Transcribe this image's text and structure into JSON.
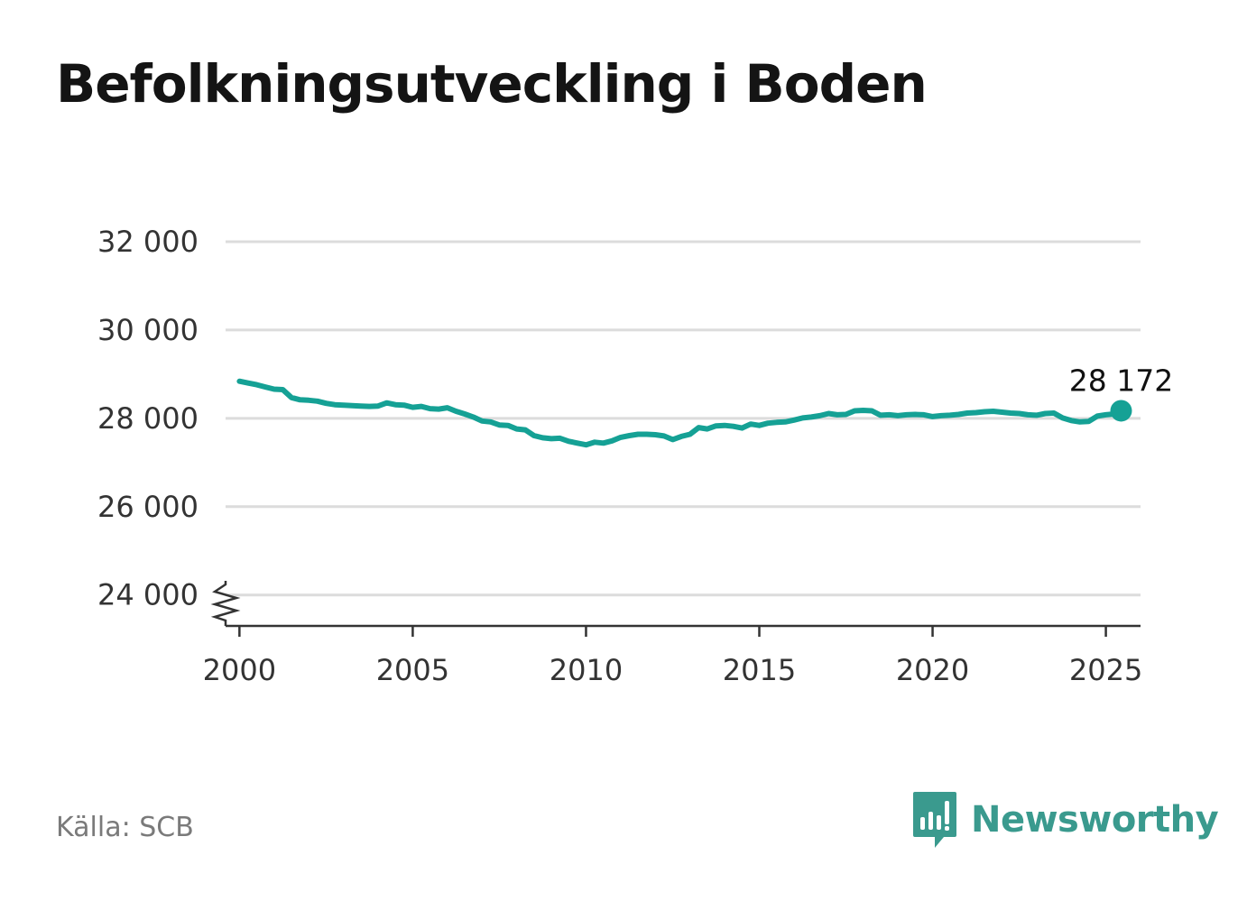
{
  "title": "Befolkningsutveckling i Boden",
  "source": "Källa: SCB",
  "brand": {
    "name": "Newsworthy",
    "icon": "newsworthy-logo-icon"
  },
  "colors": {
    "line": "#15a195",
    "grid": "#dcdcdc",
    "axis": "#333333",
    "brand": "#3a9a8e"
  },
  "chart_data": {
    "type": "line",
    "title": "Befolkningsutveckling i Boden",
    "xlabel": "",
    "ylabel": "",
    "xlim": [
      1999.6,
      2026.0
    ],
    "ylim": [
      23300,
      32000
    ],
    "axis_break": true,
    "grid": true,
    "x_ticks": [
      2000,
      2005,
      2010,
      2015,
      2020,
      2025
    ],
    "x_tick_labels": [
      "2000",
      "2005",
      "2010",
      "2015",
      "2020",
      "2025"
    ],
    "y_ticks": [
      24000,
      26000,
      28000,
      30000,
      32000
    ],
    "y_tick_labels": [
      "24 000",
      "26 000",
      "28 000",
      "30 000",
      "32 000"
    ],
    "end_label": "28 172",
    "series": [
      {
        "x": [
          2000.0,
          2000.25,
          2000.5,
          2000.75,
          2001.0,
          2001.25,
          2001.5,
          2001.75,
          2002.0,
          2002.25,
          2002.5,
          2002.75,
          2003.0,
          2003.25,
          2003.5,
          2003.75,
          2004.0,
          2004.25,
          2004.5,
          2004.75,
          2005.0,
          2005.25,
          2005.5,
          2005.75,
          2006.0,
          2006.25,
          2006.5,
          2006.75,
          2007.0,
          2007.25,
          2007.5,
          2007.75,
          2008.0,
          2008.25,
          2008.5,
          2008.75,
          2009.0,
          2009.25,
          2009.5,
          2009.75,
          2010.0,
          2010.25,
          2010.5,
          2010.75,
          2011.0,
          2011.25,
          2011.5,
          2011.75,
          2012.0,
          2012.25,
          2012.5,
          2012.75,
          2013.0,
          2013.25,
          2013.5,
          2013.75,
          2014.0,
          2014.25,
          2014.5,
          2014.75,
          2015.0,
          2015.25,
          2015.5,
          2015.75,
          2016.0,
          2016.25,
          2016.5,
          2016.75,
          2017.0,
          2017.25,
          2017.5,
          2017.75,
          2018.0,
          2018.25,
          2018.5,
          2018.75,
          2019.0,
          2019.25,
          2019.5,
          2019.75,
          2020.0,
          2020.25,
          2020.5,
          2020.75,
          2021.0,
          2021.25,
          2021.5,
          2021.75,
          2022.0,
          2022.25,
          2022.5,
          2022.75,
          2023.0,
          2023.25,
          2023.5,
          2023.75,
          2024.0,
          2024.25,
          2024.5,
          2024.75,
          2025.0,
          2025.25,
          2025.44
        ],
        "y": [
          28840,
          28800,
          28760,
          28710,
          28660,
          28650,
          28470,
          28420,
          28410,
          28390,
          28340,
          28310,
          28300,
          28290,
          28280,
          28270,
          28280,
          28350,
          28310,
          28300,
          28250,
          28270,
          28220,
          28210,
          28240,
          28160,
          28100,
          28030,
          27940,
          27920,
          27850,
          27840,
          27760,
          27740,
          27610,
          27560,
          27540,
          27550,
          27480,
          27440,
          27400,
          27460,
          27440,
          27490,
          27570,
          27610,
          27640,
          27640,
          27630,
          27600,
          27520,
          27590,
          27640,
          27790,
          27760,
          27830,
          27840,
          27820,
          27780,
          27870,
          27840,
          27890,
          27910,
          27920,
          27960,
          28010,
          28030,
          28060,
          28110,
          28080,
          28090,
          28170,
          28180,
          28170,
          28070,
          28080,
          28060,
          28080,
          28090,
          28080,
          28040,
          28060,
          28070,
          28090,
          28120,
          28130,
          28150,
          28160,
          28140,
          28120,
          28110,
          28080,
          28070,
          28110,
          28120,
          28010,
          27950,
          27920,
          27930,
          28050,
          28080,
          28100,
          28172
        ]
      }
    ]
  }
}
